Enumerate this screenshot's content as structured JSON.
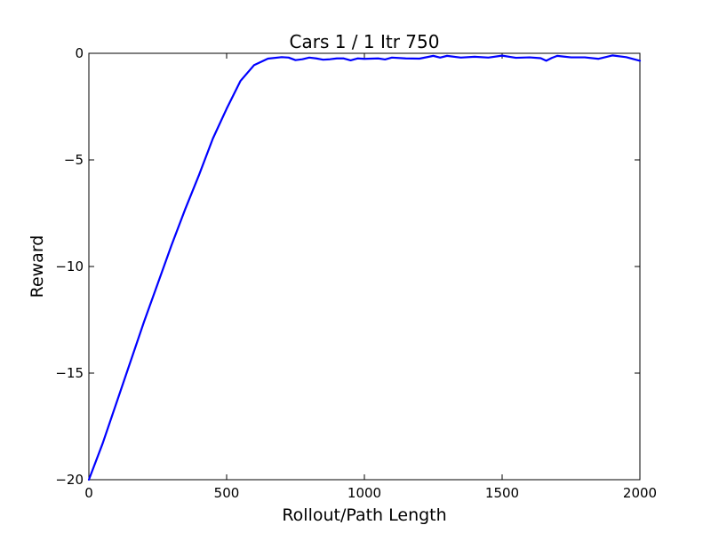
{
  "chart_data": {
    "type": "line",
    "title": "Cars 1 / 1 Itr 750",
    "xlabel": "Rollout/Path Length",
    "ylabel": "Reward",
    "xlim": [
      0,
      2000
    ],
    "ylim": [
      -20,
      0
    ],
    "xticks": [
      0,
      500,
      1000,
      1500,
      2000
    ],
    "yticks": [
      -20,
      -15,
      -10,
      -5,
      0
    ],
    "x_tick_labels": [
      "0",
      "500",
      "1000",
      "1500",
      "2000"
    ],
    "y_tick_labels": [
      "−20",
      "−15",
      "−10",
      "−5",
      "0"
    ],
    "grid": false,
    "series": [
      {
        "color": "#0000ff",
        "x": [
          0,
          50,
          100,
          150,
          200,
          250,
          300,
          350,
          400,
          450,
          500,
          550,
          600,
          650,
          700,
          725,
          750,
          775,
          800,
          825,
          850,
          875,
          900,
          925,
          950,
          975,
          1000,
          1050,
          1075,
          1100,
          1150,
          1200,
          1250,
          1275,
          1300,
          1350,
          1400,
          1450,
          1500,
          1550,
          1600,
          1640,
          1660,
          1680,
          1700,
          1750,
          1800,
          1850,
          1900,
          1950,
          2000
        ],
        "y": [
          -20.0,
          -18.3,
          -16.4,
          -14.5,
          -12.6,
          -10.8,
          -9.0,
          -7.3,
          -5.7,
          -4.0,
          -2.6,
          -1.3,
          -0.55,
          -0.25,
          -0.18,
          -0.2,
          -0.32,
          -0.28,
          -0.2,
          -0.24,
          -0.3,
          -0.28,
          -0.24,
          -0.24,
          -0.33,
          -0.24,
          -0.26,
          -0.24,
          -0.29,
          -0.2,
          -0.24,
          -0.25,
          -0.12,
          -0.2,
          -0.12,
          -0.2,
          -0.16,
          -0.2,
          -0.11,
          -0.21,
          -0.19,
          -0.23,
          -0.35,
          -0.22,
          -0.12,
          -0.19,
          -0.19,
          -0.26,
          -0.1,
          -0.18,
          -0.35
        ]
      }
    ]
  }
}
